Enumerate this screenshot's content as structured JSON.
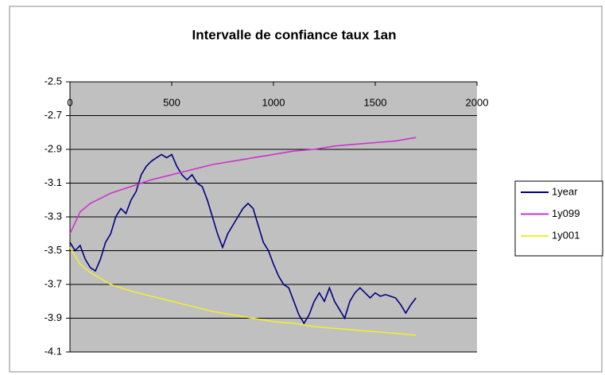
{
  "chart_data": {
    "type": "line",
    "title": "Intervalle de confiance taux 1an",
    "xlim": [
      0,
      2000
    ],
    "xticks": [
      0,
      500,
      1000,
      1500,
      2000
    ],
    "ylim": [
      -4.1,
      -2.5
    ],
    "yticks": [
      -2.5,
      -2.7,
      -2.9,
      -3.1,
      -3.3,
      -3.5,
      -3.7,
      -3.9,
      -4.1
    ],
    "grid": true,
    "legend": "right",
    "series": [
      {
        "name": "1year",
        "color": "#000080",
        "x": [
          0,
          25,
          50,
          75,
          100,
          125,
          150,
          175,
          200,
          225,
          250,
          275,
          300,
          325,
          350,
          375,
          400,
          425,
          450,
          475,
          500,
          525,
          550,
          575,
          600,
          625,
          650,
          675,
          700,
          725,
          750,
          775,
          800,
          825,
          850,
          875,
          900,
          925,
          950,
          975,
          1000,
          1025,
          1050,
          1075,
          1100,
          1125,
          1150,
          1175,
          1200,
          1225,
          1250,
          1275,
          1300,
          1325,
          1350,
          1375,
          1400,
          1425,
          1450,
          1475,
          1500,
          1525,
          1550,
          1575,
          1600,
          1625,
          1650,
          1675,
          1700
        ],
        "values": [
          -3.45,
          -3.5,
          -3.47,
          -3.55,
          -3.6,
          -3.62,
          -3.55,
          -3.45,
          -3.4,
          -3.3,
          -3.25,
          -3.28,
          -3.2,
          -3.15,
          -3.05,
          -3.0,
          -2.97,
          -2.95,
          -2.93,
          -2.95,
          -2.93,
          -3.0,
          -3.05,
          -3.08,
          -3.05,
          -3.1,
          -3.12,
          -3.2,
          -3.3,
          -3.4,
          -3.48,
          -3.4,
          -3.35,
          -3.3,
          -3.25,
          -3.22,
          -3.25,
          -3.35,
          -3.45,
          -3.5,
          -3.58,
          -3.65,
          -3.7,
          -3.72,
          -3.8,
          -3.88,
          -3.93,
          -3.88,
          -3.8,
          -3.75,
          -3.8,
          -3.72,
          -3.8,
          -3.85,
          -3.9,
          -3.8,
          -3.75,
          -3.72,
          -3.75,
          -3.78,
          -3.75,
          -3.77,
          -3.76,
          -3.77,
          -3.78,
          -3.82,
          -3.87,
          -3.82,
          -3.78
        ]
      },
      {
        "name": "1y099",
        "color": "#cc33cc",
        "x": [
          0,
          50,
          100,
          200,
          300,
          400,
          500,
          600,
          700,
          800,
          900,
          1000,
          1100,
          1200,
          1300,
          1400,
          1500,
          1600,
          1700
        ],
        "values": [
          -3.4,
          -3.27,
          -3.22,
          -3.16,
          -3.12,
          -3.08,
          -3.05,
          -3.02,
          -2.99,
          -2.97,
          -2.95,
          -2.93,
          -2.91,
          -2.9,
          -2.88,
          -2.87,
          -2.86,
          -2.85,
          -2.83
        ]
      },
      {
        "name": "1y001",
        "color": "#eeee33",
        "x": [
          0,
          50,
          100,
          200,
          300,
          400,
          500,
          600,
          700,
          800,
          900,
          1000,
          1100,
          1200,
          1300,
          1400,
          1500,
          1600,
          1700
        ],
        "values": [
          -3.48,
          -3.58,
          -3.63,
          -3.7,
          -3.74,
          -3.77,
          -3.8,
          -3.83,
          -3.86,
          -3.88,
          -3.9,
          -3.92,
          -3.93,
          -3.95,
          -3.96,
          -3.97,
          -3.98,
          -3.99,
          -4.0
        ]
      }
    ]
  }
}
